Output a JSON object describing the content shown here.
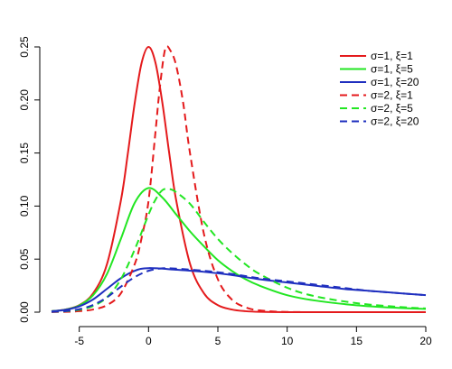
{
  "chart_data": {
    "type": "line",
    "title": "",
    "xlabel": "",
    "ylabel": "",
    "xlim": [
      -7,
      20
    ],
    "ylim": [
      0,
      0.25
    ],
    "x_ticks": [
      -5,
      0,
      5,
      10,
      15,
      20
    ],
    "x_tick_labels": [
      "-5",
      "0",
      "5",
      "10",
      "15",
      "20"
    ],
    "y_ticks": [
      0.0,
      0.05,
      0.1,
      0.15,
      0.2,
      0.25
    ],
    "y_tick_labels": [
      "0.00",
      "0.05",
      "0.10",
      "0.15",
      "0.20",
      "0.25"
    ],
    "grid": false,
    "legend_position": "top-right",
    "series": [
      {
        "name": "σ=1, ξ=1",
        "color": "#e41a1c",
        "dash": "solid",
        "x": [
          -7,
          -6,
          -5,
          -4,
          -3,
          -2,
          -1.5,
          -1,
          -0.5,
          0,
          0.5,
          1,
          1.5,
          2,
          3,
          4,
          5,
          6,
          7,
          8,
          10,
          15,
          20
        ],
        "y": [
          0.0009,
          0.0025,
          0.0066,
          0.0177,
          0.0452,
          0.105,
          0.149,
          0.197,
          0.235,
          0.25,
          0.235,
          0.197,
          0.149,
          0.105,
          0.0452,
          0.0177,
          0.0066,
          0.0025,
          0.0009,
          0.0003,
          0.0,
          0.0,
          0.0
        ]
      },
      {
        "name": "σ=1, ξ=5",
        "color": "#22e622",
        "dash": "solid",
        "x": [
          -7,
          -6,
          -5,
          -4,
          -3,
          -2,
          -1,
          0,
          1,
          2,
          3,
          4,
          5,
          6,
          7,
          8,
          10,
          12,
          15,
          18,
          20
        ],
        "y": [
          0.0009,
          0.0024,
          0.0063,
          0.016,
          0.036,
          0.069,
          0.103,
          0.117,
          0.108,
          0.092,
          0.076,
          0.062,
          0.049,
          0.039,
          0.031,
          0.025,
          0.016,
          0.011,
          0.0065,
          0.004,
          0.003
        ]
      },
      {
        "name": "σ=1, ξ=20",
        "color": "#1f2fbf",
        "dash": "solid",
        "x": [
          -7,
          -6,
          -5,
          -4,
          -3,
          -2,
          -1,
          0,
          2,
          4,
          6,
          8,
          10,
          12,
          14,
          16,
          18,
          20
        ],
        "y": [
          0.0008,
          0.0022,
          0.0055,
          0.012,
          0.022,
          0.032,
          0.039,
          0.0415,
          0.04,
          0.038,
          0.035,
          0.031,
          0.028,
          0.025,
          0.022,
          0.02,
          0.018,
          0.016
        ]
      },
      {
        "name": "σ=2, ξ=1",
        "color": "#e41a1c",
        "dash": "dashed",
        "x": [
          -7,
          -6,
          -5,
          -4,
          -3,
          -2,
          -1,
          -0.5,
          0,
          0.5,
          0.8,
          1.2,
          1.6,
          2,
          2.5,
          3,
          4,
          5,
          6,
          7,
          8,
          10,
          15,
          20
        ],
        "y": [
          0.0001,
          0.0003,
          0.0009,
          0.0025,
          0.0066,
          0.0177,
          0.0452,
          0.07,
          0.105,
          0.17,
          0.21,
          0.248,
          0.246,
          0.232,
          0.197,
          0.149,
          0.0734,
          0.031,
          0.012,
          0.0045,
          0.0017,
          0.0002,
          0.0,
          0.0
        ]
      },
      {
        "name": "σ=2, ξ=5",
        "color": "#22e622",
        "dash": "dashed",
        "x": [
          -7,
          -6,
          -5,
          -4,
          -3,
          -2,
          -1,
          0,
          0.5,
          1,
          1.5,
          2,
          3,
          4,
          5,
          6,
          7,
          8,
          10,
          12,
          15,
          18,
          20
        ],
        "y": [
          0.0003,
          0.0008,
          0.0022,
          0.0058,
          0.014,
          0.031,
          0.059,
          0.092,
          0.106,
          0.115,
          0.116,
          0.113,
          0.102,
          0.085,
          0.069,
          0.056,
          0.045,
          0.036,
          0.023,
          0.015,
          0.0085,
          0.005,
          0.0035
        ]
      },
      {
        "name": "σ=2, ξ=20",
        "color": "#1f2fbf",
        "dash": "dashed",
        "x": [
          -7,
          -6,
          -5,
          -4,
          -3,
          -2,
          -1,
          0,
          1,
          2,
          4,
          6,
          8,
          10,
          12,
          14,
          16,
          18,
          20
        ],
        "y": [
          0.0003,
          0.001,
          0.0028,
          0.0068,
          0.014,
          0.024,
          0.033,
          0.039,
          0.0413,
          0.041,
          0.039,
          0.036,
          0.032,
          0.029,
          0.026,
          0.023,
          0.02,
          0.018,
          0.016
        ]
      }
    ]
  }
}
